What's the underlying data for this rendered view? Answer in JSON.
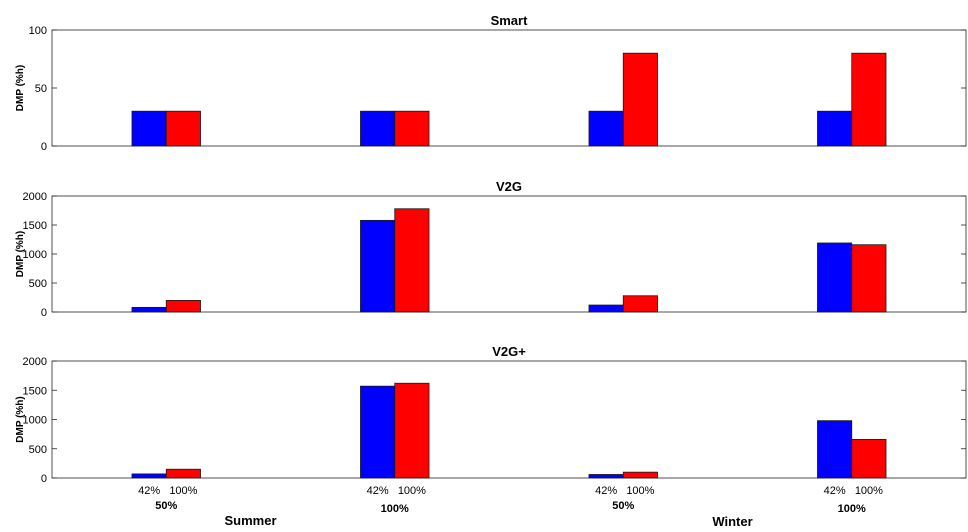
{
  "colors": {
    "series1": "#0000ff",
    "series2": "#ff0000",
    "axis": "#262626",
    "background": "#ffffff"
  },
  "x_labels": {
    "bar_labels": [
      "42%",
      "100%"
    ],
    "level_labels": [
      "50%",
      "100%",
      "50%",
      "100%"
    ],
    "season_labels": [
      "Summer",
      "Winter"
    ]
  },
  "chart_data": [
    {
      "type": "bar",
      "title": "Smart",
      "ylabel": "DMP (%h)",
      "xlabel": "",
      "ylim": [
        0,
        100
      ],
      "yticks": [
        "0",
        "50",
        "100"
      ],
      "grid": false,
      "categories": [
        "Summer 50%",
        "Summer 100%",
        "Winter 50%",
        "Winter 100%"
      ],
      "series": [
        {
          "values": [
            30,
            30,
            30,
            30
          ]
        },
        {
          "values": [
            30,
            30,
            80,
            80
          ]
        }
      ]
    },
    {
      "type": "bar",
      "title": "V2G",
      "ylabel": "DMP (%h)",
      "xlabel": "",
      "ylim": [
        0,
        2000
      ],
      "yticks": [
        "0",
        "500",
        "1000",
        "1500",
        "2000"
      ],
      "grid": false,
      "categories": [
        "Summer 50%",
        "Summer 100%",
        "Winter 50%",
        "Winter 100%"
      ],
      "series": [
        {
          "values": [
            80,
            1580,
            120,
            1190
          ]
        },
        {
          "values": [
            200,
            1780,
            280,
            1160
          ]
        }
      ]
    },
    {
      "type": "bar",
      "title": "V2G+",
      "ylabel": "DMP (%h)",
      "xlabel": "",
      "ylim": [
        0,
        2000
      ],
      "yticks": [
        "0",
        "500",
        "1000",
        "1500",
        "2000"
      ],
      "grid": false,
      "categories": [
        "Summer 50%",
        "Summer 100%",
        "Winter 50%",
        "Winter 100%"
      ],
      "series": [
        {
          "values": [
            70,
            1570,
            60,
            980
          ]
        },
        {
          "values": [
            150,
            1620,
            100,
            660
          ]
        }
      ]
    }
  ]
}
